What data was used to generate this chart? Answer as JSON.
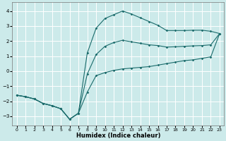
{
  "title": "",
  "xlabel": "Humidex (Indice chaleur)",
  "bg_color": "#cceaea",
  "grid_color": "#ffffff",
  "line_color": "#1a6b6b",
  "xlim": [
    -0.5,
    23.5
  ],
  "ylim": [
    -3.6,
    4.6
  ],
  "xticks": [
    0,
    1,
    2,
    3,
    4,
    5,
    6,
    7,
    8,
    9,
    10,
    11,
    12,
    13,
    14,
    15,
    16,
    17,
    18,
    19,
    20,
    21,
    22,
    23
  ],
  "yticks": [
    -3,
    -2,
    -1,
    0,
    1,
    2,
    3,
    4
  ],
  "line1_x": [
    0,
    1,
    2,
    3,
    4,
    5,
    6,
    7,
    8,
    9,
    10,
    11,
    12,
    13,
    14,
    15,
    16,
    17,
    18,
    19,
    20,
    21,
    22,
    23
  ],
  "line1_y": [
    -1.6,
    -1.7,
    -1.85,
    -2.15,
    -2.3,
    -2.5,
    -3.2,
    -2.8,
    -1.4,
    -0.3,
    -0.1,
    0.05,
    0.15,
    0.2,
    0.25,
    0.3,
    0.4,
    0.5,
    0.6,
    0.7,
    0.75,
    0.85,
    0.95,
    2.5
  ],
  "line2_x": [
    0,
    1,
    2,
    3,
    4,
    5,
    6,
    7,
    8,
    9,
    10,
    11,
    12,
    13,
    14,
    15,
    16,
    17,
    18,
    19,
    20,
    21,
    22,
    23
  ],
  "line2_y": [
    -1.6,
    -1.7,
    -1.85,
    -2.15,
    -2.3,
    -2.5,
    -3.2,
    -2.8,
    1.2,
    2.85,
    3.5,
    3.75,
    4.0,
    3.8,
    3.55,
    3.3,
    3.05,
    2.7,
    2.7,
    2.7,
    2.72,
    2.72,
    2.65,
    2.5
  ],
  "line3_x": [
    0,
    1,
    2,
    3,
    4,
    5,
    6,
    7,
    8,
    9,
    10,
    11,
    12,
    13,
    14,
    15,
    16,
    17,
    18,
    19,
    20,
    21,
    22,
    23
  ],
  "line3_y": [
    -1.6,
    -1.7,
    -1.85,
    -2.15,
    -2.3,
    -2.5,
    -3.2,
    -2.8,
    -0.2,
    1.1,
    1.65,
    1.9,
    2.05,
    1.95,
    1.85,
    1.75,
    1.7,
    1.6,
    1.62,
    1.65,
    1.68,
    1.7,
    1.75,
    2.5
  ],
  "marker": "D",
  "markersize": 1.8,
  "linewidth": 0.8,
  "xlabel_fontsize": 6.0,
  "tick_fontsize": 4.5
}
